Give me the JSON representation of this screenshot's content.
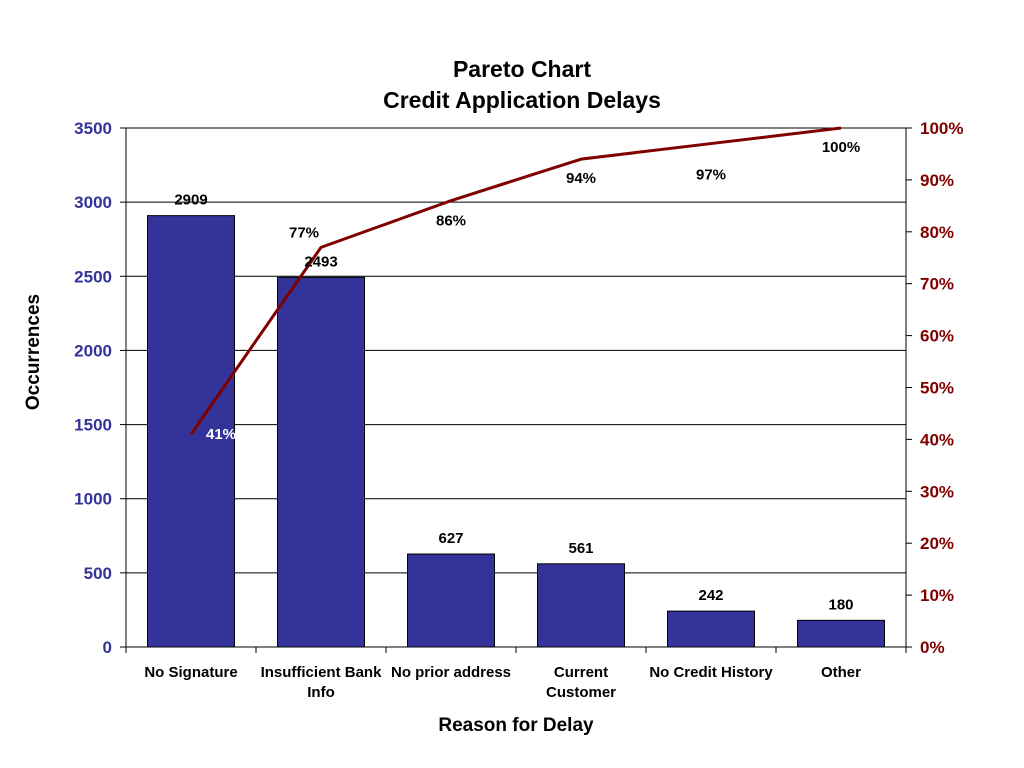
{
  "chart_data": {
    "type": "bar",
    "title": "Pareto Chart",
    "subtitle": "Credit Application Delays",
    "xlabel": "Reason for Delay",
    "ylabel": "Occurrences",
    "categories": [
      "No Signature",
      "Insufficient Bank Info",
      "No prior address",
      "Current Customer",
      "No Credit History",
      "Other"
    ],
    "category_lines": [
      [
        "No Signature"
      ],
      [
        "Insufficient Bank",
        "Info"
      ],
      [
        "No prior address"
      ],
      [
        "Current",
        "Customer"
      ],
      [
        "No Credit History"
      ],
      [
        "Other"
      ]
    ],
    "series": [
      {
        "type": "bar",
        "axis": "left",
        "values": [
          2909,
          2493,
          627,
          561,
          242,
          180
        ],
        "labels": [
          "2909",
          "2493",
          "627",
          "561",
          "242",
          "180"
        ],
        "color": "#333399"
      },
      {
        "type": "line",
        "axis": "right",
        "values": [
          41,
          77,
          86,
          94,
          97,
          100
        ],
        "labels": [
          "41%",
          "77%",
          "86%",
          "94%",
          "97%",
          "100%"
        ],
        "color": "#800000"
      }
    ],
    "ylim": [
      0,
      3500
    ],
    "yticks": [
      "0",
      "500",
      "1000",
      "1500",
      "2000",
      "2500",
      "3000",
      "3500"
    ],
    "y2lim": [
      0,
      100
    ],
    "y2ticks": [
      "0%",
      "10%",
      "20%",
      "30%",
      "40%",
      "50%",
      "60%",
      "70%",
      "80%",
      "90%",
      "100%"
    ],
    "grid": true,
    "legend": "none",
    "colors": {
      "bar": "#333399",
      "line": "#800000",
      "left_axis_text": "#33339a",
      "right_axis_text": "#800000"
    }
  }
}
